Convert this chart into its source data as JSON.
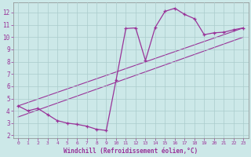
{
  "xlabel": "Windchill (Refroidissement éolien,°C)",
  "bg_color": "#cce8e8",
  "line_color": "#993399",
  "grid_color": "#aacccc",
  "xlim": [
    -0.5,
    23.5
  ],
  "ylim": [
    1.8,
    12.8
  ],
  "yticks": [
    2,
    3,
    4,
    5,
    6,
    7,
    8,
    9,
    10,
    11,
    12
  ],
  "xticks": [
    0,
    1,
    2,
    3,
    4,
    5,
    6,
    7,
    8,
    9,
    10,
    11,
    12,
    13,
    14,
    15,
    16,
    17,
    18,
    19,
    20,
    21,
    22,
    23
  ],
  "curve1_x": [
    0,
    1,
    2,
    3,
    4,
    5,
    6,
    7,
    8,
    9,
    10,
    11,
    12,
    13,
    14,
    15,
    16,
    17,
    18,
    19,
    20,
    21,
    22,
    23
  ],
  "curve1_y": [
    4.4,
    4.0,
    4.2,
    3.7,
    3.2,
    3.0,
    2.9,
    2.75,
    2.5,
    2.4,
    6.5,
    10.7,
    10.75,
    8.1,
    10.8,
    12.1,
    12.35,
    11.85,
    11.5,
    10.2,
    10.35,
    10.4,
    10.6,
    10.75
  ],
  "line1_x": [
    0,
    23
  ],
  "line1_y": [
    4.4,
    10.75
  ],
  "line2_x": [
    0,
    23
  ],
  "line2_y": [
    3.5,
    10.0
  ]
}
